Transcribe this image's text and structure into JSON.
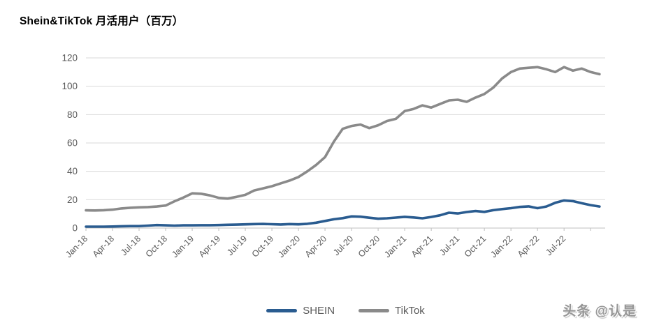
{
  "page": {
    "watermark": "头条 @认是"
  },
  "chart_data": {
    "type": "line",
    "title": "Shein&TikTok 月活用户（百万）",
    "xlabel": "",
    "ylabel": "",
    "ylim": [
      0,
      120
    ],
    "y_ticks": [
      0,
      20,
      40,
      60,
      80,
      100,
      120
    ],
    "grid": "horizontal",
    "legend_position": "bottom-center",
    "x_tick_interval": 3,
    "x_tick_labels": [
      "Jan-18",
      "Apr-18",
      "Jul-18",
      "Oct-18",
      "Jan-19",
      "Apr-19",
      "Jul-19",
      "Oct-19",
      "Jan-20",
      "Apr-20",
      "Jul-20",
      "Oct-20",
      "Jan-21",
      "Apr-21",
      "Jul-21",
      "Oct-21",
      "Jan-22",
      "Apr-22",
      "Jul-22"
    ],
    "x": [
      "Jan-18",
      "Feb-18",
      "Mar-18",
      "Apr-18",
      "May-18",
      "Jun-18",
      "Jul-18",
      "Aug-18",
      "Sep-18",
      "Oct-18",
      "Nov-18",
      "Dec-18",
      "Jan-19",
      "Feb-19",
      "Mar-19",
      "Apr-19",
      "May-19",
      "Jun-19",
      "Jul-19",
      "Aug-19",
      "Sep-19",
      "Oct-19",
      "Nov-19",
      "Dec-19",
      "Jan-20",
      "Feb-20",
      "Mar-20",
      "Apr-20",
      "May-20",
      "Jun-20",
      "Jul-20",
      "Aug-20",
      "Sep-20",
      "Oct-20",
      "Nov-20",
      "Dec-20",
      "Jan-21",
      "Feb-21",
      "Mar-21",
      "Apr-21",
      "May-21",
      "Jun-21",
      "Jul-21",
      "Aug-21",
      "Sep-21",
      "Oct-21",
      "Nov-21",
      "Dec-21",
      "Jan-22",
      "Feb-22",
      "Mar-22",
      "Apr-22",
      "May-22",
      "Jun-22",
      "Jul-22",
      "Aug-22",
      "Sep-22",
      "Oct-22",
      "Nov-22"
    ],
    "series": [
      {
        "name": "SHEIN",
        "color": "#2a5c90",
        "values": [
          1.0,
          1.0,
          1.0,
          1.1,
          1.3,
          1.4,
          1.4,
          1.7,
          2.1,
          1.9,
          1.7,
          1.9,
          1.9,
          2.0,
          2.0,
          2.1,
          2.3,
          2.4,
          2.6,
          2.8,
          2.9,
          2.7,
          2.5,
          2.8,
          2.6,
          3.0,
          3.8,
          5.0,
          6.2,
          7.0,
          8.2,
          8.0,
          7.3,
          6.6,
          6.9,
          7.4,
          7.9,
          7.5,
          6.9,
          7.8,
          9.0,
          10.8,
          10.3,
          11.3,
          12.0,
          11.4,
          12.6,
          13.4,
          14.0,
          14.9,
          15.3,
          14.0,
          15.2,
          17.8,
          19.5,
          19.0,
          17.5,
          16.2,
          15.2
        ]
      },
      {
        "name": "TikTok",
        "color": "#8a8a8a",
        "values": [
          12.5,
          12.4,
          12.6,
          13.0,
          13.8,
          14.3,
          14.6,
          14.8,
          15.2,
          15.9,
          18.9,
          21.5,
          24.5,
          24.2,
          23.0,
          21.3,
          20.8,
          22.0,
          23.4,
          26.5,
          28.0,
          29.5,
          31.5,
          33.5,
          36.0,
          40.0,
          44.5,
          50.0,
          61.0,
          70.0,
          72.0,
          73.0,
          70.5,
          72.5,
          75.5,
          77.0,
          82.5,
          84.0,
          86.5,
          85.0,
          87.5,
          90.0,
          90.5,
          89.0,
          92.0,
          94.5,
          99.0,
          105.5,
          110.0,
          112.5,
          113.0,
          113.5,
          112.0,
          110.0,
          113.5,
          111.0,
          112.5,
          110.0,
          108.5
        ]
      }
    ],
    "axis_text_color": "#595959",
    "gridline_color": "#d9d9d9",
    "axis_line_color": "#bfbfbf"
  }
}
